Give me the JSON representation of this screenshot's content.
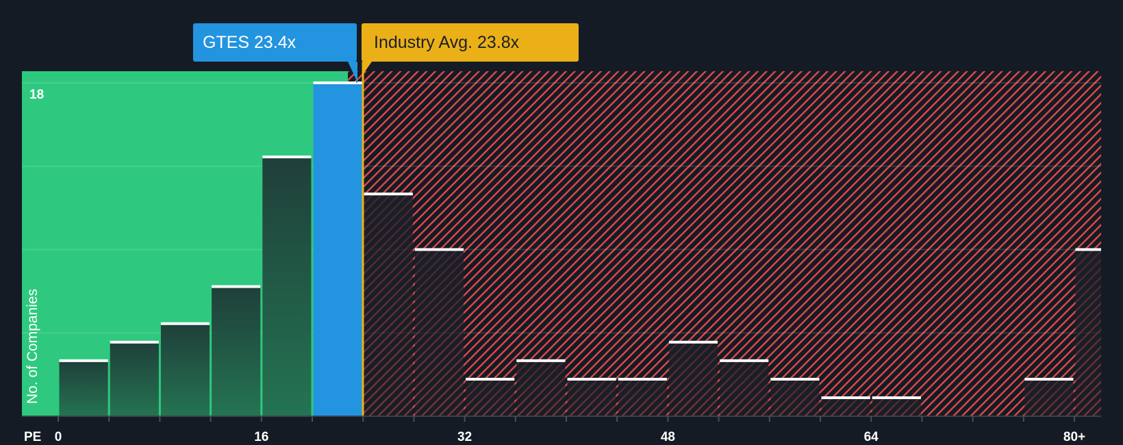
{
  "labels": {
    "company": "GTES 23.4x",
    "industry": "Industry Avg. 23.8x",
    "y_axis": "No. of Companies",
    "x_axis": "PE",
    "y_max_tick": "18"
  },
  "colors": {
    "background": "#151b24",
    "below_avg": "#2ec97f",
    "company_bar": "#2394df",
    "industry_marker": "#ebb018",
    "above_avg_hatch": "#e04a4a",
    "bar_dark": "#1f4a3e"
  },
  "chart_data": {
    "type": "bar",
    "title": "",
    "xlabel": "PE",
    "ylabel": "No. of Companies",
    "bins": [
      "0-4",
      "4-8",
      "8-12",
      "12-16",
      "16-20",
      "20-24",
      "24-28",
      "28-32",
      "32-36",
      "36-40",
      "40-44",
      "44-48",
      "48-52",
      "52-56",
      "56-60",
      "60-64",
      "64-68",
      "68-72",
      "72-76",
      "76-80",
      "80+"
    ],
    "values": [
      3,
      4,
      5,
      7,
      14,
      18,
      12,
      9,
      2,
      3,
      2,
      2,
      4,
      3,
      2,
      1,
      1,
      0,
      0,
      2,
      9
    ],
    "x_ticks": [
      "0",
      "16",
      "32",
      "48",
      "64",
      "80+"
    ],
    "y_ticks": [
      "18"
    ],
    "ylim": [
      0,
      18
    ],
    "highlight": {
      "bin": "20-24",
      "label": "GTES 23.4x",
      "value": 23.4
    },
    "industry_avg": {
      "label": "Industry Avg. 23.8x",
      "value": 23.8
    },
    "grid": true,
    "legend": "none"
  }
}
